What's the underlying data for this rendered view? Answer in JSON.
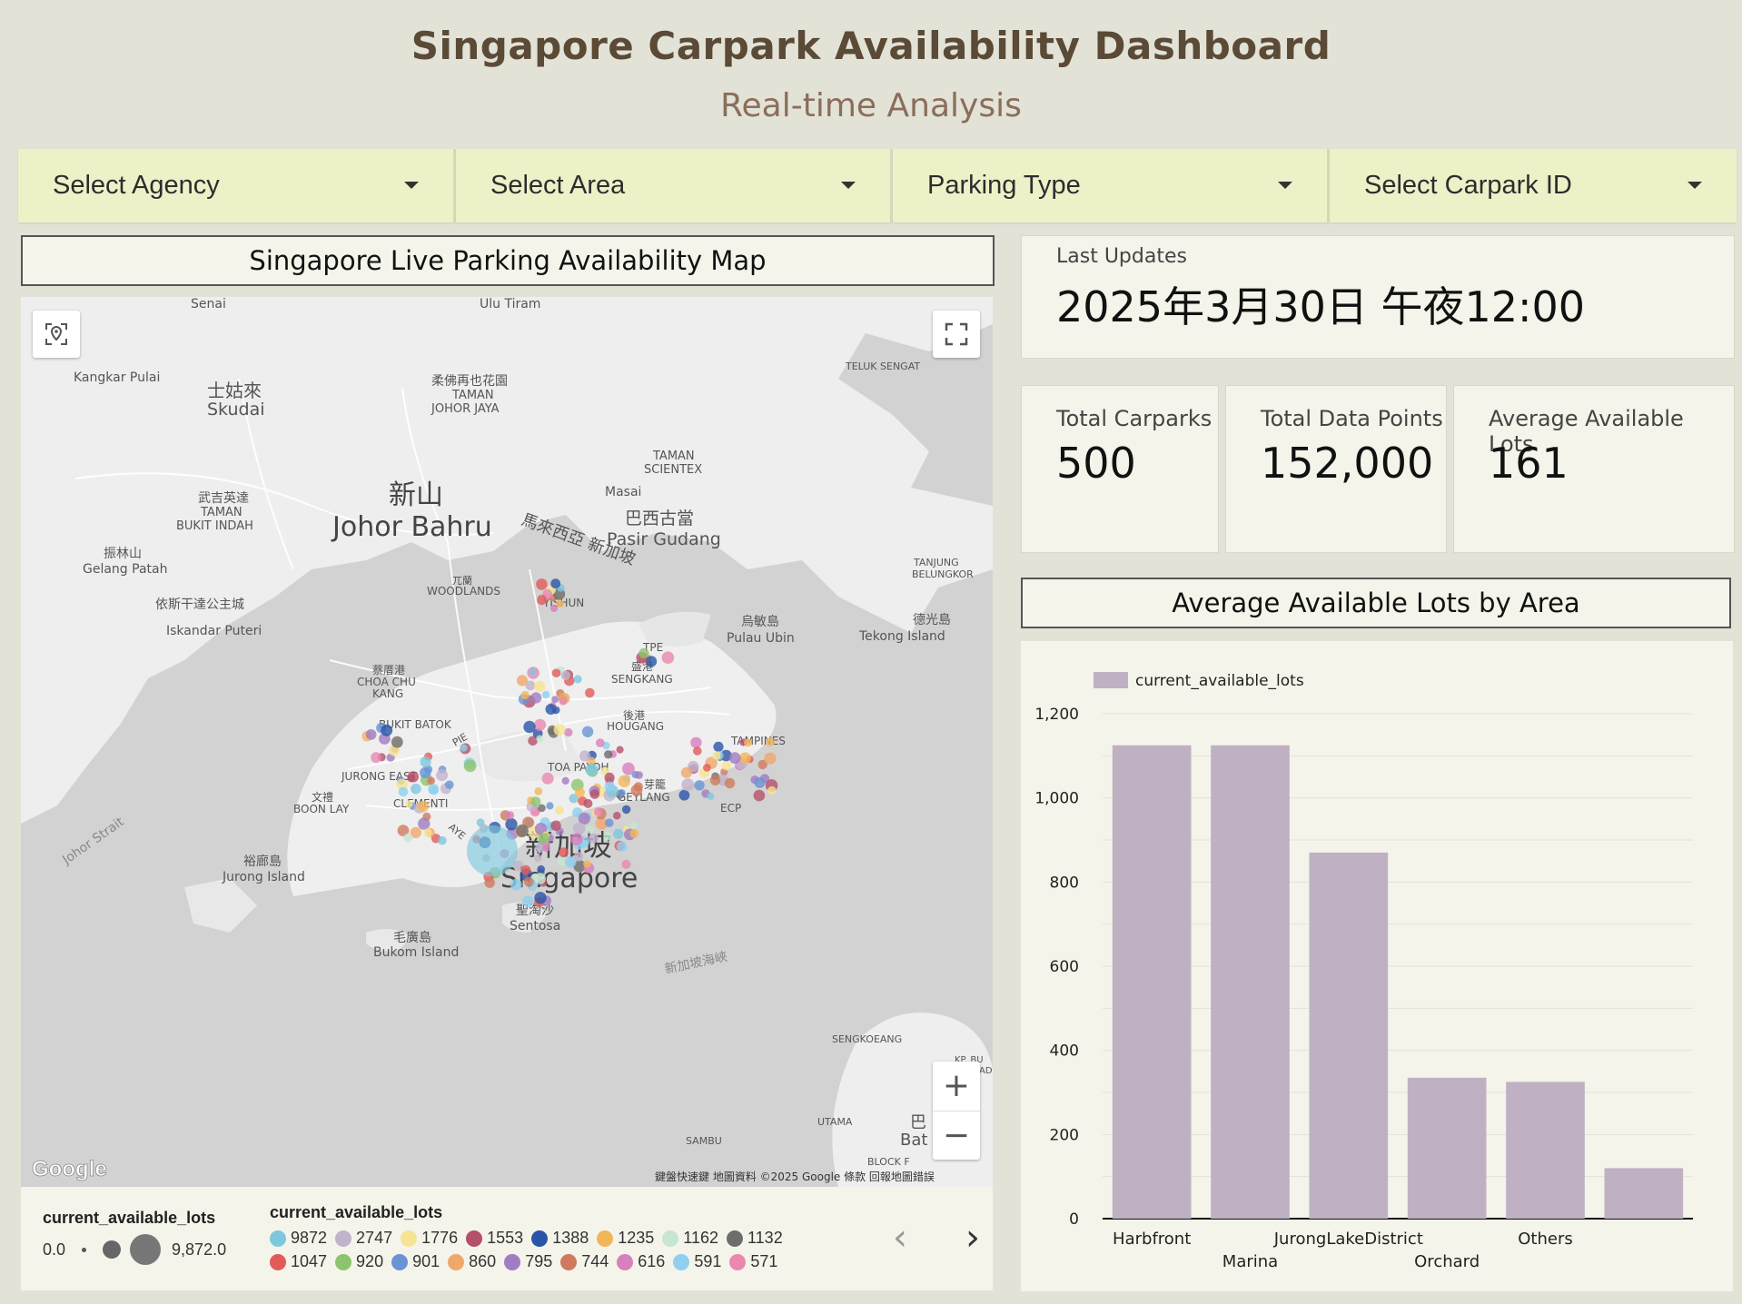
{
  "header": {
    "title": "Singapore Carpark Availability Dashboard",
    "subtitle": "Real-time Analysis"
  },
  "filters": [
    {
      "label": "Select Agency"
    },
    {
      "label": "Select Area"
    },
    {
      "label": "Parking Type"
    },
    {
      "label": "Select Carpark ID"
    }
  ],
  "map_panel": {
    "title": "Singapore Live Parking Availability Map",
    "attribution": "鍵盤快速鍵   地圖資料 ©2025 Google   條款   回報地圖錯誤",
    "google_logo": "Google",
    "places": {
      "senai": "Senai",
      "ulu_tiram": "Ulu Tiram",
      "kangkar_pulai": "Kangkar Pulai",
      "skudai_cn": "士姑來",
      "skudai": "Skudai",
      "taman_johor_jaya_cn": "柔佛再也花園",
      "taman_johor_jaya": "TAMAN\nJOHOR JAYA",
      "taman_scientex": "TAMAN\nSCIENTEX",
      "teluk_sengat": "TELUK SENGAT",
      "johor_bahru_cn": "新山",
      "johor_bahru": "Johor Bahru",
      "bukit_indah_cn": "武吉英達",
      "bukit_indah": "TAMAN\nBUKIT INDAH",
      "masai": "Masai",
      "malaysia_sg": "馬來西亞 新加坡",
      "pasir_gudang_cn": "巴西古當",
      "pasir_gudang": "Pasir Gudang",
      "gelang_patah_cn": "振林山",
      "gelang_patah": "Gelang Patah",
      "iskandar_cn": "依斯干達公主城",
      "iskandar": "Iskandar Puteri",
      "tanjung_belungkor": "TANJUNG\nBELUNGKOR",
      "woodlands_cn": "兀蘭",
      "woodlands": "WOODLANDS",
      "yishun": "YISHUN",
      "pulau_ubin_cn": "烏敏島",
      "pulau_ubin": "Pulau Ubin",
      "tekong_cn": "德光島",
      "tekong": "Tekong Island",
      "choa_chu_kang_cn": "蔡厝港",
      "choa_chu_kang": "CHOA CHU\nKANG",
      "sengkang_cn": "盛港",
      "sengkang": "SENGKANG",
      "tpe": "TPE",
      "hougang_cn": "後港",
      "hougang": "HOUGANG",
      "bukit_batok": "BUKIT BATOK",
      "pie": "PIE",
      "jurong_east": "JURONG EAST",
      "tampines": "TAMPINES",
      "toa_payoh": "TOA PAYOH",
      "geylang_cn": "芽籠",
      "geylang": "GEYLANG",
      "boon_lay_cn": "文禮",
      "boon_lay": "BOON LAY",
      "clementi": "CLEMENTI",
      "ecp": "ECP",
      "aye": "AYE",
      "johor_strait": "Johor Strait",
      "jurong_island_cn": "裕廊島",
      "jurong_island": "Jurong Island",
      "singapore_cn": "新加坡",
      "singapore": "Singapore",
      "sentosa_cn": "聖淘沙",
      "sentosa": "Sentosa",
      "bukom_cn": "毛廣島",
      "bukom": "Bukom Island",
      "sg_strait_cn": "新加坡海峽",
      "sengkoeang": "SENGKOEANG",
      "samboo": "SAMBU",
      "utama": "UTAMA",
      "batam_cn": "巴",
      "batam": "Bat",
      "block_f": "BLOCK F",
      "kp_bu": "KP. BU\nAD"
    },
    "controls": {
      "locate": "locate-icon",
      "fullscreen": "fullscreen-icon",
      "zoom_in": "+",
      "zoom_out": "−"
    }
  },
  "legend": {
    "size_title": "current_available_lots",
    "size_min": "0.0",
    "size_max": "9,872.0",
    "color_title": "current_available_lots",
    "items_row1": [
      {
        "label": "9872",
        "color": "#7fc7dd"
      },
      {
        "label": "2747",
        "color": "#c0b3cc"
      },
      {
        "label": "1776",
        "color": "#f6e394"
      },
      {
        "label": "1553",
        "color": "#b5506a"
      },
      {
        "label": "1388",
        "color": "#2a55a8"
      },
      {
        "label": "1235",
        "color": "#f2b65a"
      },
      {
        "label": "1162",
        "color": "#c6e6d2"
      },
      {
        "label": "1132",
        "color": "#6d6d6d"
      }
    ],
    "items_row2": [
      {
        "label": "1047",
        "color": "#e15b5b"
      },
      {
        "label": "920",
        "color": "#8cc46d"
      },
      {
        "label": "901",
        "color": "#6a93d6"
      },
      {
        "label": "860",
        "color": "#f0a86a"
      },
      {
        "label": "795",
        "color": "#a07cc2"
      },
      {
        "label": "744",
        "color": "#cf7a5e"
      },
      {
        "label": "616",
        "color": "#d87fbd"
      },
      {
        "label": "591",
        "color": "#8fd0f0"
      },
      {
        "label": "571",
        "color": "#e989b0"
      }
    ],
    "prev": "‹",
    "next": "›"
  },
  "last_update": {
    "label": "Last Updates",
    "value": "2025年3月30日 午夜12:00"
  },
  "kpis": [
    {
      "label": "Total Carparks",
      "value": "500"
    },
    {
      "label": "Total Data Points",
      "value": "152,000"
    },
    {
      "label": "Average Available Lots",
      "value": "161"
    }
  ],
  "chart_panel": {
    "title": "Average Available Lots by Area"
  },
  "chart_data": {
    "type": "bar",
    "title": "Average Available Lots by Area",
    "categories": [
      "Harbfront",
      "Marina",
      "JurongLakeDistrict",
      "Orchard",
      "Others",
      ""
    ],
    "series": [
      {
        "name": "current_available_lots",
        "values": [
          1125,
          1125,
          870,
          335,
          325,
          120
        ],
        "color": "#bfb1c3"
      }
    ],
    "yticks": [
      "0",
      "200",
      "400",
      "600",
      "800",
      "1,000",
      "1,200"
    ],
    "ylim": [
      0,
      1200
    ],
    "grid": true,
    "legend": "top-left"
  }
}
